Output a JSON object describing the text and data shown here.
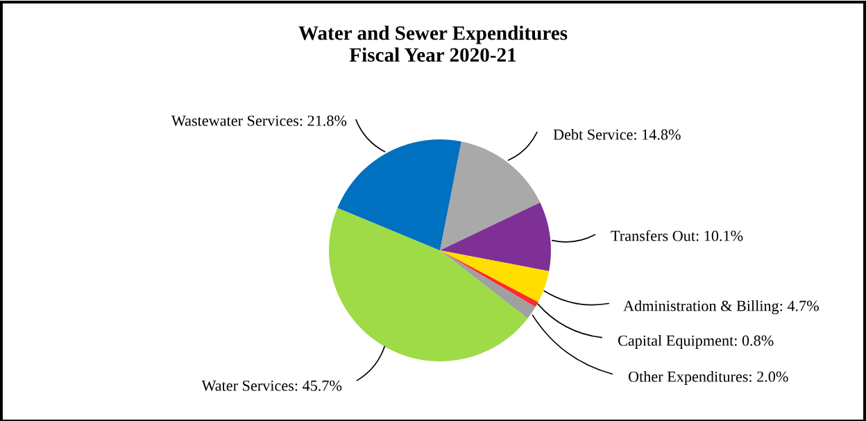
{
  "chart_data": {
    "type": "pie",
    "title": "Water and Sewer Expenditures\nFiscal Year 2020-21",
    "categories": [
      "Debt Service",
      "Transfers Out",
      "Administration & Billing",
      "Capital Equipment",
      "Other Expenditures",
      "Water Services",
      "Wastewater Services"
    ],
    "values": [
      14.8,
      10.1,
      4.7,
      0.8,
      2.0,
      45.7,
      21.8
    ],
    "colors": [
      "#a9a9a9",
      "#7f3096",
      "#ffde00",
      "#ff2a2a",
      "#a0a0a0",
      "#9edb46",
      "#0070c0"
    ],
    "value_labels": [
      "14.8%",
      "10.1%",
      "4.7%",
      "0.8%",
      "2.0%",
      "45.7%",
      "21.8%"
    ],
    "legend": false
  }
}
